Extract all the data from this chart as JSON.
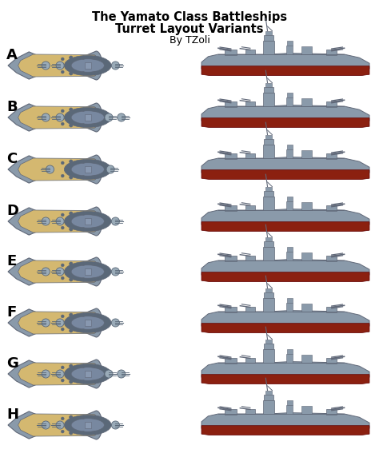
{
  "title_line1": "The Yamato Class Battleships",
  "title_line2": "Turret Layout Variants",
  "title_line3": "By TZoli",
  "labels": [
    "A",
    "B",
    "C",
    "D",
    "E",
    "F",
    "G",
    "H"
  ],
  "bg_color": "#ffffff",
  "deck_color": "#d4b870",
  "hull_gray": "#8a9aaa",
  "hull_dark": "#606878",
  "hull_mid": "#7080909",
  "turret_light": "#9aabb8",
  "turret_dark": "#5a6878",
  "red_belt": "#8b2010",
  "label_fontsize": 13,
  "title_fontsize": 10.5
}
